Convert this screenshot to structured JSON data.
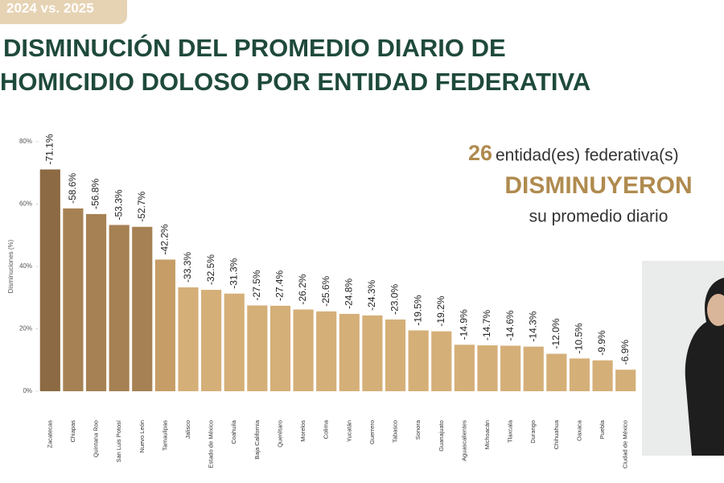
{
  "chart_data": {
    "type": "bar",
    "tag": "2024 vs. 2025",
    "title": [
      "DISMINUCIÓN DEL PROMEDIO DIARIO DE",
      "HOMICIDIO DOLOSO POR ENTIDAD FEDERATIVA"
    ],
    "y_label": "Disminuciones (%)",
    "annotation": {
      "number": "26",
      "text": "entidad(es) federativa(s)",
      "highlight": "DISMINUYERON",
      "subtext": "su promedio diario"
    },
    "categories": [
      "Zacatecas",
      "Chiapas",
      "Quintana Roo",
      "San Luis Potosí",
      "Nuevo León",
      "Tamaulipas",
      "Jalisco",
      "Estado de México",
      "Coahuila",
      "Baja California",
      "Querétaro",
      "Morelos",
      "Colima",
      "Yucatán",
      "Guerrero",
      "Tabasco",
      "Sonora",
      "Guanajuato",
      "Aguascalientes",
      "Michoacán",
      "Tlaxcala",
      "Durango",
      "Chihuahua",
      "Oaxaca",
      "Puebla",
      "Ciudad de México"
    ],
    "values": [
      71.1,
      58.6,
      56.8,
      53.3,
      52.7,
      42.2,
      33.3,
      32.5,
      31.3,
      27.5,
      27.4,
      26.2,
      25.6,
      24.8,
      24.3,
      23.0,
      19.5,
      19.2,
      14.9,
      14.7,
      14.6,
      14.3,
      12.0,
      10.5,
      9.9,
      6.9
    ],
    "value_labels": [
      "-71.1%",
      "-58.6%",
      "-56.8%",
      "-53.3%",
      "-52.7%",
      "-42.2%",
      "-33.3%",
      "-32.5%",
      "-31.3%",
      "-27.5%",
      "-27.4%",
      "-26.2%",
      "-25.6%",
      "-24.8%",
      "-24.3%",
      "-23.0%",
      "-19.5%",
      "-19.2%",
      "-14.9%",
      "-14.7%",
      "-14.6%",
      "-14.3%",
      "-12.0%",
      "-10.5%",
      "-9.9%",
      "-6.9%"
    ],
    "colors": [
      "#8c6a43",
      "#a68153",
      "#a68153",
      "#a68153",
      "#a68153",
      "#c69d66",
      "#d5af78",
      "#d5af78",
      "#d5af78",
      "#d5af78",
      "#d5af78",
      "#d5af78",
      "#d5af78",
      "#d5af78",
      "#d5af78",
      "#d5af78",
      "#d5af78",
      "#d5af78",
      "#d5af78",
      "#d5af78",
      "#d5af78",
      "#d5af78",
      "#d5af78",
      "#d5af78",
      "#d5af78",
      "#d5af78"
    ],
    "ylim": [
      0,
      80
    ],
    "yticks": [
      {
        "value": 0,
        "label": "0%"
      },
      {
        "value": 20,
        "label": "20%"
      },
      {
        "value": 40,
        "label": "40%"
      },
      {
        "value": 60,
        "label": "60%"
      },
      {
        "value": 80,
        "label": "80%"
      }
    ]
  }
}
